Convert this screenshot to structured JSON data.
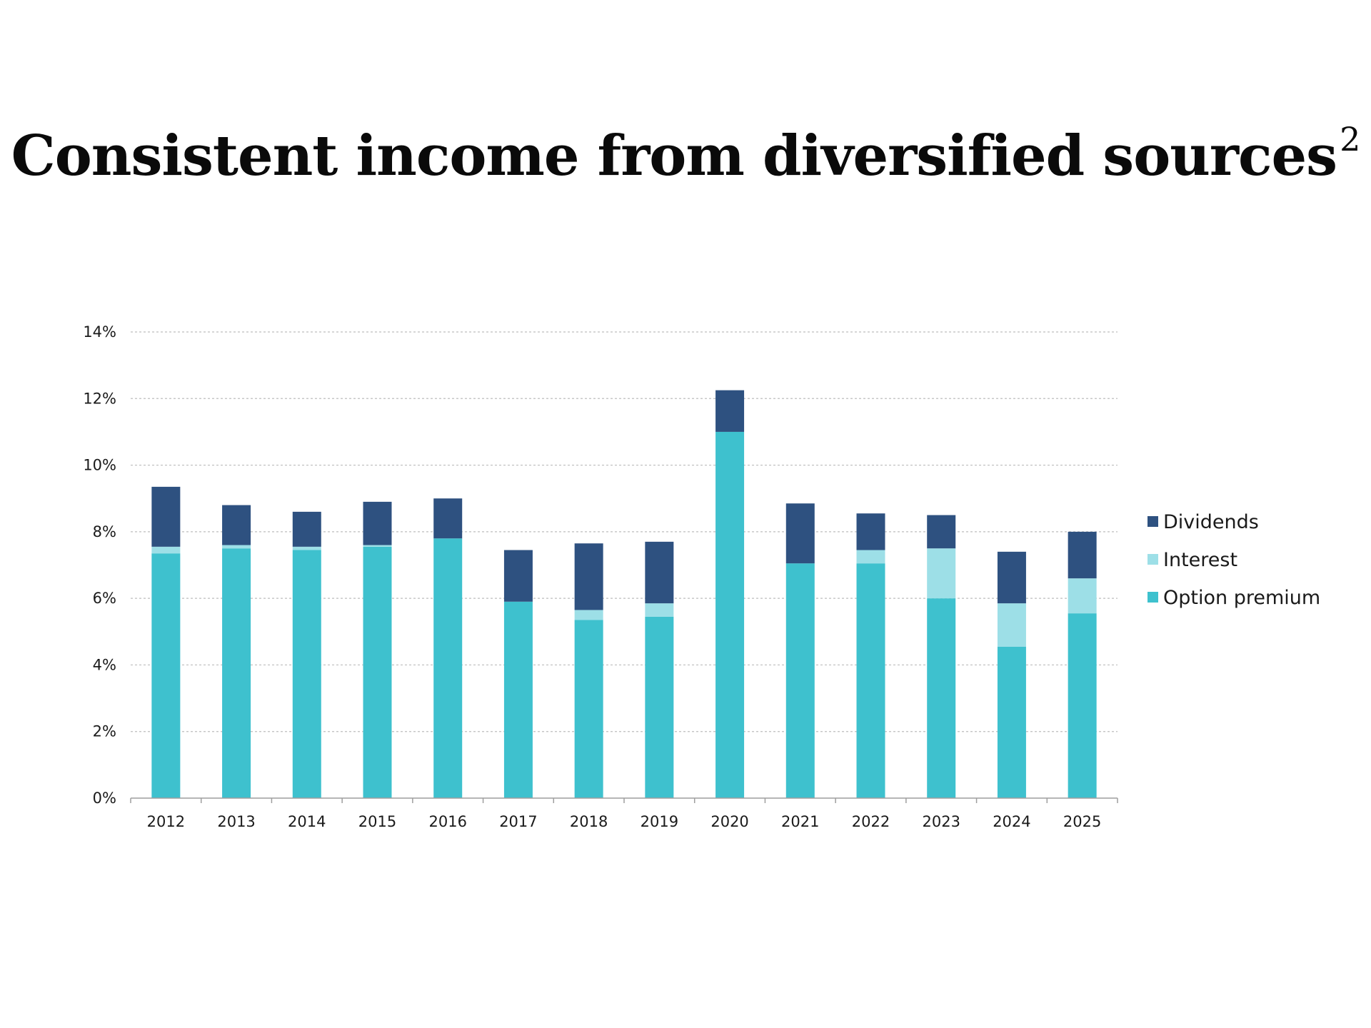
{
  "title": "Consistent income from diversified sources",
  "title_superscript": "2",
  "colors": {
    "dividends": "#2e5180",
    "interest": "#9ddfe7",
    "option_premium": "#3ec1ce",
    "grid": "#bdbdbd",
    "axis": "#9e9e9e"
  },
  "chart_data": {
    "type": "bar",
    "stacked": true,
    "categories": [
      "2012",
      "2013",
      "2014",
      "2015",
      "2016",
      "2017",
      "2018",
      "2019",
      "2020",
      "2021",
      "2022",
      "2023",
      "2024",
      "2025"
    ],
    "series": [
      {
        "name": "Option premium",
        "color_key": "option_premium",
        "values": [
          7.35,
          7.5,
          7.45,
          7.55,
          7.8,
          5.9,
          5.35,
          5.45,
          11.0,
          7.05,
          7.05,
          6.0,
          4.55,
          5.55
        ]
      },
      {
        "name": "Interest",
        "color_key": "interest",
        "values": [
          0.2,
          0.1,
          0.1,
          0.05,
          0.0,
          0.0,
          0.3,
          0.4,
          0.0,
          0.0,
          0.4,
          1.5,
          1.3,
          1.05
        ]
      },
      {
        "name": "Dividends",
        "color_key": "dividends",
        "values": [
          1.8,
          1.2,
          1.05,
          1.3,
          1.2,
          1.55,
          2.0,
          1.85,
          1.25,
          1.8,
          1.1,
          1.0,
          1.55,
          1.4
        ]
      }
    ],
    "legend_order": [
      "Dividends",
      "Interest",
      "Option premium"
    ],
    "legend_position": "right",
    "y_ticks": [
      "0%",
      "2%",
      "4%",
      "6%",
      "8%",
      "10%",
      "12%",
      "14%"
    ],
    "ylim": [
      0,
      14
    ],
    "y_unit": "%",
    "grid": true
  }
}
